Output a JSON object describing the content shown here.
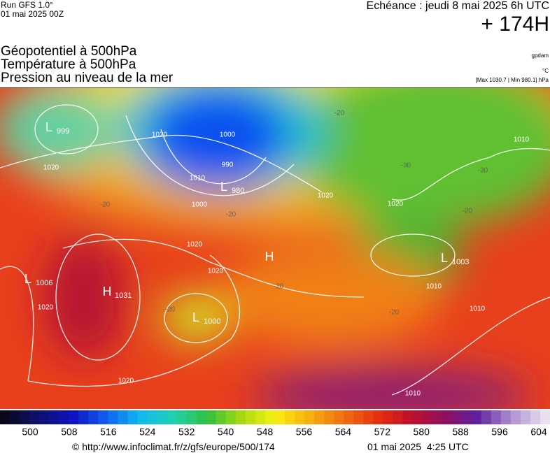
{
  "header": {
    "run": "Run GFS 1.0°",
    "date": "01 mai 2025 00Z",
    "echeance": "Echéance : jeudi 8 mai 2025 6h UTC",
    "lead": "+ 174H"
  },
  "layers": [
    "Géopotentiel à 500hPa",
    "Température à 500hPa",
    "Pression au niveau de la mer"
  ],
  "units": [
    "gpdam",
    "°C",
    "[Max 1030.7 | Min 980.1] hPa"
  ],
  "map": {
    "centers": [
      {
        "label": "L",
        "value": "999"
      },
      {
        "label": "L",
        "value": "980"
      },
      {
        "label": "H",
        "value": "1031"
      },
      {
        "label": "L",
        "value": "1006"
      },
      {
        "label": "L",
        "value": "1000"
      },
      {
        "label": "L",
        "value": "1003"
      },
      {
        "label": "H"
      }
    ],
    "isobar_labels": [
      "1020",
      "1020",
      "1000",
      "990",
      "1010",
      "1000",
      "1020",
      "1020",
      "1020",
      "1020",
      "1020",
      "1010",
      "1010",
      "1010",
      "1010",
      "1020"
    ],
    "temp_labels": [
      "-20",
      "-20",
      "-20",
      "-20",
      "-20",
      "-20",
      "-30",
      "-30",
      "-20"
    ]
  },
  "colorbar": {
    "colors": [
      "#08081a",
      "#101070",
      "#1010c0",
      "#1060f0",
      "#10b8f0",
      "#20d0b0",
      "#30c040",
      "#a8d810",
      "#f8f010",
      "#f8b010",
      "#f07010",
      "#e83010",
      "#c01028",
      "#901060",
      "#6020a0",
      "#b090d0",
      "#e8e0f0"
    ],
    "ticks": [
      500,
      508,
      516,
      524,
      532,
      540,
      548,
      556,
      564,
      572,
      580,
      588,
      596,
      604
    ]
  },
  "footer": {
    "url": "© http://www.infoclimat.fr/z/gfs/europe/500/174",
    "timestamp": "01 mai 2025  4:25 UTC"
  }
}
